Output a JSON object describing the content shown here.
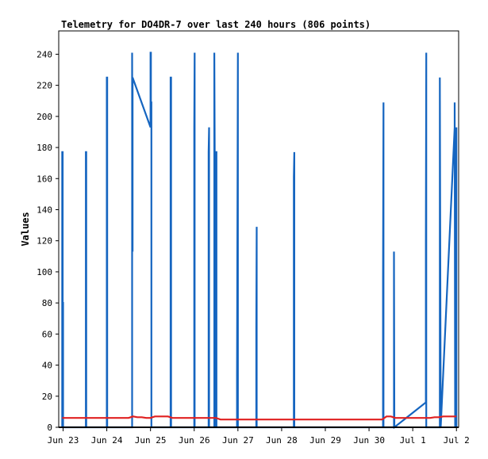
{
  "chart_data": {
    "type": "line",
    "title": "Telemetry for DO4DR-7 over last 240 hours (806 points)",
    "ylabel": "Values",
    "xlabel": "",
    "ylim": [
      0,
      255
    ],
    "yticks": [
      0,
      20,
      40,
      60,
      80,
      100,
      120,
      140,
      160,
      180,
      200,
      220,
      240
    ],
    "xlim": [
      -0.1,
      9.05
    ],
    "xticks": [
      {
        "x": 0,
        "label": "Jun 23"
      },
      {
        "x": 1,
        "label": "Jun 24"
      },
      {
        "x": 2,
        "label": "Jun 25"
      },
      {
        "x": 3,
        "label": "Jun 26"
      },
      {
        "x": 4,
        "label": "Jun 27"
      },
      {
        "x": 5,
        "label": "Jun 28"
      },
      {
        "x": 6,
        "label": "Jun 29"
      },
      {
        "x": 7,
        "label": "Jun 30"
      },
      {
        "x": 8,
        "label": "Jul 1"
      },
      {
        "x": 9,
        "label": "Jul 2"
      }
    ],
    "grid": false,
    "colors": {
      "series_a": "#1565c0",
      "series_b": "#e02020"
    },
    "series": [
      {
        "name": "",
        "color": "#1565c0",
        "x": [
          -0.02,
          -0.02,
          -0.01,
          -0.01,
          0.0,
          0.0,
          0.52,
          0.52,
          0.53,
          0.53,
          1.0,
          1.0,
          1.01,
          1.01,
          1.58,
          1.58,
          1.59,
          1.59,
          2.0,
          2.0,
          2.01,
          2.01,
          2.02,
          2.02,
          2.46,
          2.46,
          2.47,
          2.47,
          3.0,
          3.0,
          3.01,
          3.01,
          3.33,
          3.33,
          3.34,
          3.34,
          3.46,
          3.46,
          3.47,
          3.47,
          3.5,
          3.5,
          3.51,
          3.51,
          3.98,
          3.98,
          4.0,
          4.0,
          4.42,
          4.42,
          4.43,
          4.43,
          5.28,
          5.28,
          5.29,
          5.29,
          7.32,
          7.32,
          7.33,
          7.33,
          7.57,
          7.57,
          7.58,
          8.3,
          8.3,
          8.31,
          8.31,
          8.62,
          8.62,
          8.64,
          8.64,
          8.96,
          8.96,
          8.97,
          8.97,
          9.0,
          9.0
        ],
        "y": [
          0,
          177,
          177,
          80,
          80,
          0,
          0,
          177,
          177,
          0,
          0,
          225,
          225,
          0,
          0,
          241,
          113,
          225,
          193,
          241,
          241,
          209,
          209,
          0,
          0,
          225,
          225,
          0,
          0,
          193,
          241,
          0,
          0,
          177,
          193,
          0,
          0,
          241,
          177,
          0,
          0,
          177,
          177,
          0,
          0,
          33,
          241,
          0,
          0,
          65,
          129,
          0,
          0,
          161,
          177,
          0,
          0,
          97,
          209,
          0,
          0,
          113,
          0,
          16,
          121,
          241,
          0,
          0,
          225,
          0,
          0,
          193,
          209,
          0,
          113,
          193,
          0
        ]
      },
      {
        "name": "",
        "color": "#e02020",
        "x": [
          -0.02,
          1.5,
          1.6,
          1.7,
          1.8,
          1.9,
          2.0,
          2.1,
          2.3,
          2.4,
          2.5,
          3.4,
          3.5,
          3.6,
          7.3,
          7.4,
          7.5,
          7.6,
          7.7,
          8.3,
          8.4,
          8.5,
          8.6,
          8.7,
          9.0
        ],
        "y": [
          6,
          6,
          7,
          6.5,
          6.5,
          6,
          6,
          7,
          7,
          7,
          6,
          6,
          6,
          5,
          5,
          7,
          7,
          6,
          6,
          6,
          6,
          6.5,
          6.5,
          7,
          7
        ]
      }
    ]
  }
}
